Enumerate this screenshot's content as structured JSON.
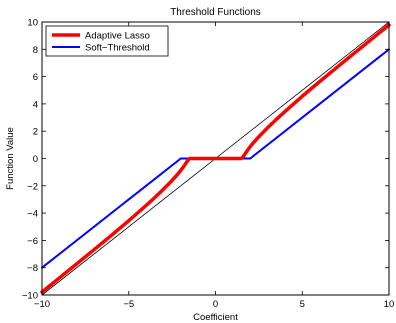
{
  "chart_data": {
    "type": "line",
    "title": "Threshold Functions",
    "xlabel": "Coefficient",
    "ylabel": "Function Value",
    "xlim": [
      -10,
      10
    ],
    "ylim": [
      -10,
      10
    ],
    "xticks": [
      -10,
      -5,
      0,
      5,
      10
    ],
    "yticks": [
      -10,
      -8,
      -6,
      -4,
      -2,
      0,
      2,
      4,
      6,
      8,
      10
    ],
    "xtick_labels": [
      "−10",
      "−5",
      "0",
      "5",
      "10"
    ],
    "ytick_labels": [
      "−10",
      "−8",
      "−6",
      "−4",
      "−2",
      "0",
      "2",
      "4",
      "6",
      "8",
      "10"
    ],
    "grid": false,
    "legend_position": "top-left",
    "series": [
      {
        "name": "Adaptive Lasso",
        "color": "#ff0000",
        "x": [
          -10,
          -9,
          -8,
          -7,
          -6,
          -5,
          -4,
          -3.5,
          -3,
          -2.5,
          -2.2,
          -2,
          -1.8,
          -1.6,
          -1.5,
          0,
          1.5,
          1.6,
          1.8,
          2,
          2.2,
          2.5,
          3,
          3.5,
          4,
          5,
          6,
          7,
          8,
          9,
          10
        ],
        "y": [
          -9.78,
          -8.75,
          -7.72,
          -6.68,
          -5.63,
          -4.56,
          -3.44,
          -2.86,
          -2.25,
          -1.6,
          -1.18,
          -0.87,
          -0.52,
          -0.15,
          0,
          0,
          0,
          0.15,
          0.52,
          0.87,
          1.18,
          1.6,
          2.25,
          2.86,
          3.44,
          4.56,
          5.63,
          6.68,
          7.72,
          8.75,
          9.78
        ]
      },
      {
        "name": "Soft−Threshold",
        "color": "#0000ff",
        "x": [
          -10,
          -2,
          2,
          10
        ],
        "y": [
          -8,
          0,
          0,
          8
        ]
      },
      {
        "name": "",
        "color": "#000000",
        "x": [
          -10,
          10
        ],
        "y": [
          -10,
          10
        ]
      }
    ]
  }
}
